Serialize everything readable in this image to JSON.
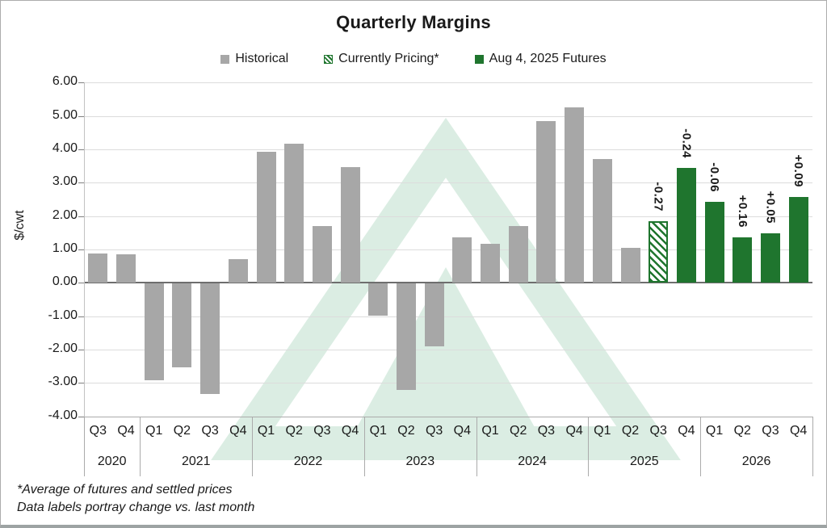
{
  "title": "Quarterly Margins",
  "legend": [
    {
      "label": "Historical",
      "series": "historical"
    },
    {
      "label": "Currently Pricing*",
      "series": "pricing"
    },
    {
      "label": "Aug 4, 2025 Futures",
      "series": "futures"
    }
  ],
  "colors": {
    "historical": "#A7A7A7",
    "futures": "#1F752E",
    "pricing_stripe": "#1F752E",
    "watermark_mint": "#DBEDE3",
    "gridline": "#DCDCDC",
    "zero_line": "#6E6E6E",
    "separator": "#ABABAB",
    "text": "#1A1A1A"
  },
  "footnotes": [
    "*Average of futures and settled prices",
    "Data labels portray change vs. last month"
  ],
  "chart_data": {
    "type": "bar",
    "title": "Quarterly Margins",
    "xlabel": "",
    "ylabel": "$/cwt",
    "ylim": [
      -4,
      6
    ],
    "y_step": 1,
    "y_tick_format": "two_decimals",
    "grid": true,
    "legend_position": "top",
    "groups": [
      {
        "year": "2020",
        "quarters": [
          "Q3",
          "Q4"
        ]
      },
      {
        "year": "2021",
        "quarters": [
          "Q1",
          "Q2",
          "Q3",
          "Q4"
        ]
      },
      {
        "year": "2022",
        "quarters": [
          "Q1",
          "Q2",
          "Q3",
          "Q4"
        ]
      },
      {
        "year": "2023",
        "quarters": [
          "Q1",
          "Q2",
          "Q3",
          "Q4"
        ]
      },
      {
        "year": "2024",
        "quarters": [
          "Q1",
          "Q2",
          "Q3",
          "Q4"
        ]
      },
      {
        "year": "2025",
        "quarters": [
          "Q1",
          "Q2",
          "Q3",
          "Q4"
        ]
      },
      {
        "year": "2026",
        "quarters": [
          "Q1",
          "Q2",
          "Q3",
          "Q4"
        ]
      }
    ],
    "bars": [
      {
        "year": "2020",
        "quarter": "Q3",
        "value": 0.88,
        "series": "historical"
      },
      {
        "year": "2020",
        "quarter": "Q4",
        "value": 0.85,
        "series": "historical"
      },
      {
        "year": "2021",
        "quarter": "Q1",
        "value": -2.9,
        "series": "historical"
      },
      {
        "year": "2021",
        "quarter": "Q2",
        "value": -2.52,
        "series": "historical"
      },
      {
        "year": "2021",
        "quarter": "Q3",
        "value": -3.3,
        "series": "historical"
      },
      {
        "year": "2021",
        "quarter": "Q4",
        "value": 0.72,
        "series": "historical"
      },
      {
        "year": "2022",
        "quarter": "Q1",
        "value": 3.92,
        "series": "historical"
      },
      {
        "year": "2022",
        "quarter": "Q2",
        "value": 4.17,
        "series": "historical"
      },
      {
        "year": "2022",
        "quarter": "Q3",
        "value": 1.7,
        "series": "historical"
      },
      {
        "year": "2022",
        "quarter": "Q4",
        "value": 3.46,
        "series": "historical"
      },
      {
        "year": "2023",
        "quarter": "Q1",
        "value": -0.95,
        "series": "historical"
      },
      {
        "year": "2023",
        "quarter": "Q2",
        "value": -3.18,
        "series": "historical"
      },
      {
        "year": "2023",
        "quarter": "Q3",
        "value": -1.89,
        "series": "historical"
      },
      {
        "year": "2023",
        "quarter": "Q4",
        "value": 1.35,
        "series": "historical"
      },
      {
        "year": "2024",
        "quarter": "Q1",
        "value": 1.18,
        "series": "historical"
      },
      {
        "year": "2024",
        "quarter": "Q2",
        "value": 1.7,
        "series": "historical"
      },
      {
        "year": "2024",
        "quarter": "Q3",
        "value": 4.85,
        "series": "historical"
      },
      {
        "year": "2024",
        "quarter": "Q4",
        "value": 5.25,
        "series": "historical"
      },
      {
        "year": "2025",
        "quarter": "Q1",
        "value": 3.7,
        "series": "historical"
      },
      {
        "year": "2025",
        "quarter": "Q2",
        "value": 1.05,
        "series": "historical"
      },
      {
        "year": "2025",
        "quarter": "Q3",
        "value": 1.85,
        "series": "pricing",
        "change_label": "-0.27"
      },
      {
        "year": "2025",
        "quarter": "Q4",
        "value": 3.43,
        "series": "futures",
        "change_label": "-0.24"
      },
      {
        "year": "2026",
        "quarter": "Q1",
        "value": 2.43,
        "series": "futures",
        "change_label": "-0.06"
      },
      {
        "year": "2026",
        "quarter": "Q2",
        "value": 1.35,
        "series": "futures",
        "change_label": "+0.16"
      },
      {
        "year": "2026",
        "quarter": "Q3",
        "value": 1.48,
        "series": "futures",
        "change_label": "+0.05"
      },
      {
        "year": "2026",
        "quarter": "Q4",
        "value": 2.57,
        "series": "futures",
        "change_label": "+0.09"
      }
    ]
  }
}
